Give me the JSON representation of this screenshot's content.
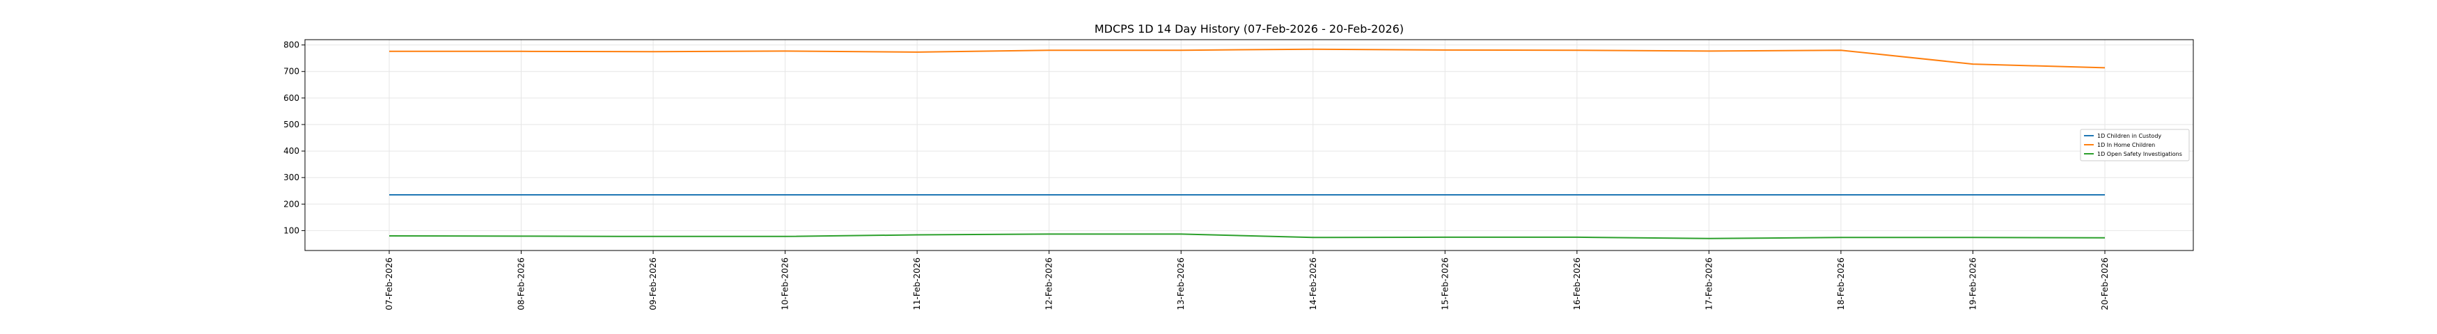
{
  "chart_data": {
    "type": "line",
    "title": "MDCPS 1D 14 Day History (07-Feb-2026 - 20-Feb-2026)",
    "xlabel": "",
    "ylabel": "",
    "categories": [
      "07-Feb-2026",
      "08-Feb-2026",
      "09-Feb-2026",
      "10-Feb-2026",
      "11-Feb-2026",
      "12-Feb-2026",
      "13-Feb-2026",
      "14-Feb-2026",
      "15-Feb-2026",
      "16-Feb-2026",
      "17-Feb-2026",
      "18-Feb-2026",
      "19-Feb-2026",
      "20-Feb-2026"
    ],
    "ylim": [
      25,
      820
    ],
    "yticks": [
      100,
      200,
      300,
      400,
      500,
      600,
      700,
      800
    ],
    "grid": true,
    "legend_position": "right",
    "series": [
      {
        "name": "1D Children in Custody",
        "color": "#1f77b4",
        "values": [
          235,
          235,
          235,
          235,
          235,
          235,
          235,
          235,
          235,
          235,
          235,
          235,
          235,
          235
        ]
      },
      {
        "name": "1D In Home Children",
        "color": "#ff7f0e",
        "values": [
          776,
          776,
          775,
          777,
          773,
          780,
          780,
          784,
          781,
          780,
          777,
          780,
          728,
          714
        ]
      },
      {
        "name": "1D Open Safety Investigations",
        "color": "#2ca02c",
        "values": [
          80,
          79,
          78,
          78,
          84,
          87,
          87,
          74,
          75,
          75,
          70,
          74,
          74,
          73
        ]
      }
    ]
  }
}
